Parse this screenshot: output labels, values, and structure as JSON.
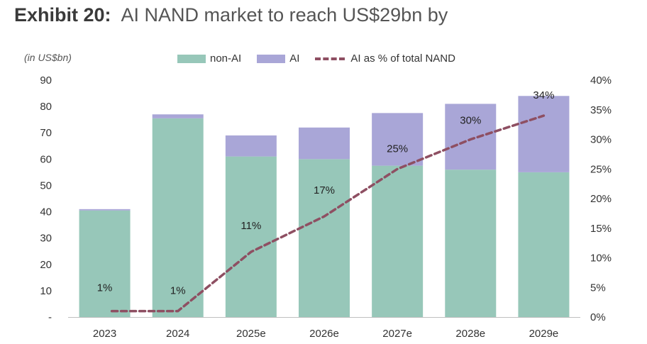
{
  "title": {
    "prefix": "Exhibit 20:",
    "text": "AI NAND market to reach US$29bn by"
  },
  "unit_label": "(in US$bn)",
  "legend": {
    "non_ai": "non-AI",
    "ai": "AI",
    "line": "AI as % of total NAND"
  },
  "colors": {
    "non_ai": "#97c7b9",
    "ai": "#a9a6d7",
    "line": "#8e4f62"
  },
  "chart_data": {
    "type": "bar",
    "stacked": true,
    "categories": [
      "2023",
      "2024",
      "2025e",
      "2026e",
      "2027e",
      "2028e",
      "2029e"
    ],
    "series": [
      {
        "name": "non-AI",
        "values": [
          40.5,
          75.5,
          61,
          60,
          57.5,
          56,
          55
        ]
      },
      {
        "name": "AI",
        "values": [
          0.5,
          1.5,
          8,
          12,
          20,
          25,
          29
        ]
      }
    ],
    "line_series": {
      "name": "AI as % of total NAND",
      "values": [
        1,
        1,
        11,
        17,
        25,
        30,
        34
      ],
      "labels": [
        "1%",
        "1%",
        "11%",
        "17%",
        "25%",
        "30%",
        "34%"
      ]
    },
    "ylim": [
      0,
      90
    ],
    "y_ticks": [
      "-",
      "10",
      "20",
      "30",
      "40",
      "50",
      "60",
      "70",
      "80",
      "90"
    ],
    "y2lim": [
      0,
      40
    ],
    "y2_ticks": [
      "0%",
      "5%",
      "10%",
      "15%",
      "20%",
      "25%",
      "30%",
      "35%",
      "40%"
    ]
  }
}
